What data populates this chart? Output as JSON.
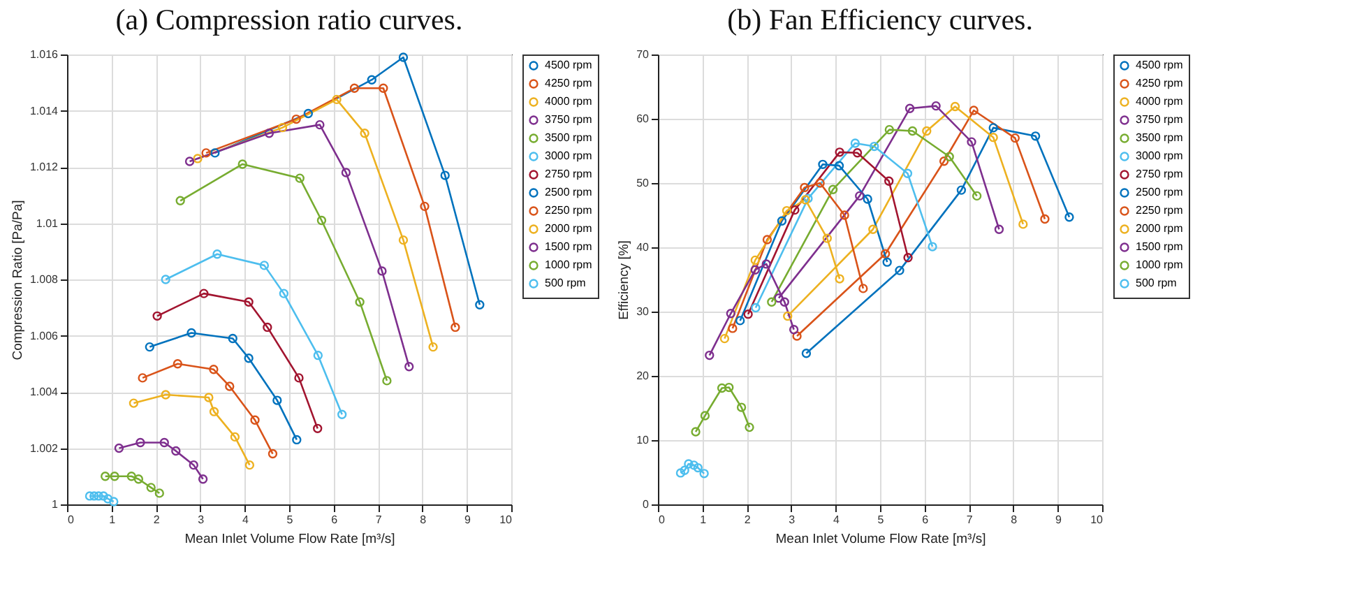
{
  "chart_data": [
    {
      "type": "line",
      "title": "(a) Compression ratio curves.",
      "xlabel": "Mean Inlet Volume Flow Rate [m³/s]",
      "ylabel": "Compression Ratio [Pa/Pa]",
      "xlim": [
        0,
        10
      ],
      "xticks": [
        0,
        1,
        2,
        3,
        4,
        5,
        6,
        7,
        8,
        9,
        10
      ],
      "ylim": [
        1,
        1.016
      ],
      "yticks": [
        1,
        1.002,
        1.004,
        1.006,
        1.008,
        1.01,
        1.012,
        1.014,
        1.016
      ],
      "grid": true,
      "legend": "right",
      "marker": "circle",
      "series": [
        {
          "name": "4500 rpm",
          "color": "#0072bd",
          "x": [
            3.33,
            5.43,
            6.86,
            7.57,
            8.51,
            9.29
          ],
          "values": [
            1.0125,
            1.0139,
            1.0151,
            1.0159,
            1.0117,
            1.0071
          ]
        },
        {
          "name": "4250 rpm",
          "color": "#d95319",
          "x": [
            3.13,
            5.16,
            6.47,
            7.12,
            8.05,
            8.74
          ],
          "values": [
            1.0125,
            1.0137,
            1.0148,
            1.0148,
            1.0106,
            1.0063
          ]
        },
        {
          "name": "4000 rpm",
          "color": "#edb120",
          "x": [
            2.94,
            4.85,
            6.07,
            6.7,
            7.57,
            8.24
          ],
          "values": [
            1.0123,
            1.0134,
            1.0144,
            1.0132,
            1.0094,
            1.0056
          ]
        },
        {
          "name": "3750 rpm",
          "color": "#7e2f8e",
          "x": [
            2.76,
            4.55,
            5.69,
            6.28,
            7.09,
            7.7
          ],
          "values": [
            1.0122,
            1.0132,
            1.0135,
            1.0118,
            1.0083,
            1.0049
          ]
        },
        {
          "name": "3500 rpm",
          "color": "#77ac30",
          "x": [
            2.55,
            3.95,
            5.24,
            5.73,
            6.59,
            7.2
          ],
          "values": [
            1.0108,
            1.0121,
            1.0116,
            1.0101,
            1.0072,
            1.0044
          ]
        },
        {
          "name": "3000 rpm",
          "color": "#4dbeee",
          "x": [
            2.22,
            3.38,
            4.44,
            4.88,
            5.65,
            6.19
          ],
          "values": [
            1.008,
            1.0089,
            1.0085,
            1.0075,
            1.0053,
            1.0032
          ]
        },
        {
          "name": "2750 rpm",
          "color": "#a2142f",
          "x": [
            2.03,
            3.08,
            4.09,
            4.51,
            5.22,
            5.64
          ],
          "values": [
            1.0067,
            1.0075,
            1.0072,
            1.0063,
            1.0045,
            1.0027
          ]
        },
        {
          "name": "2500 rpm",
          "color": "#0072bd",
          "x": [
            1.86,
            2.8,
            3.73,
            4.09,
            4.73,
            5.17
          ],
          "values": [
            1.0056,
            1.0061,
            1.0059,
            1.0052,
            1.0037,
            1.0023
          ]
        },
        {
          "name": "2250 rpm",
          "color": "#d95319",
          "x": [
            1.7,
            2.49,
            3.3,
            3.66,
            4.23,
            4.63
          ],
          "values": [
            1.0045,
            1.005,
            1.0048,
            1.0042,
            1.003,
            1.0018
          ]
        },
        {
          "name": "2000 rpm",
          "color": "#edb120",
          "x": [
            1.5,
            2.22,
            3.19,
            3.31,
            3.78,
            4.11
          ],
          "values": [
            1.0036,
            1.0039,
            1.0038,
            1.0033,
            1.0024,
            1.0014
          ]
        },
        {
          "name": "1500 rpm",
          "color": "#7e2f8e",
          "x": [
            1.17,
            1.65,
            2.19,
            2.45,
            2.85,
            3.06
          ],
          "values": [
            1.002,
            1.0022,
            1.0022,
            1.0019,
            1.0014,
            1.0009
          ]
        },
        {
          "name": "1000 rpm",
          "color": "#77ac30",
          "x": [
            0.86,
            1.07,
            1.45,
            1.61,
            1.89,
            2.08
          ],
          "values": [
            1.001,
            1.001,
            1.001,
            1.0009,
            1.0006,
            1.0004
          ]
        },
        {
          "name": "500 rpm",
          "color": "#4dbeee",
          "x": [
            0.51,
            0.61,
            0.71,
            0.82,
            0.92,
            1.05
          ],
          "values": [
            1.0003,
            1.0003,
            1.0003,
            1.0003,
            1.0002,
            1.0001
          ]
        }
      ]
    },
    {
      "type": "line",
      "title": "(b) Fan Efficiency curves.",
      "xlabel": "Mean Inlet Volume Flow Rate [m³/s]",
      "ylabel": "Efficiency [%]",
      "xlim": [
        0,
        10
      ],
      "xticks": [
        0,
        1,
        2,
        3,
        4,
        5,
        6,
        7,
        8,
        9,
        10
      ],
      "ylim": [
        0,
        70
      ],
      "yticks": [
        0,
        10,
        20,
        30,
        40,
        50,
        60,
        70
      ],
      "grid": true,
      "legend": "right",
      "marker": "circle",
      "series": [
        {
          "name": "4500 rpm",
          "color": "#0072bd",
          "x": [
            3.34,
            5.44,
            6.83,
            7.55,
            8.5,
            9.26
          ],
          "values": [
            23.5,
            36.4,
            48.9,
            58.6,
            57.3,
            44.7
          ]
        },
        {
          "name": "4250 rpm",
          "color": "#d95319",
          "x": [
            3.13,
            5.12,
            6.44,
            7.11,
            8.04,
            8.71
          ],
          "values": [
            26.2,
            39,
            53.4,
            61.3,
            57,
            44.4
          ]
        },
        {
          "name": "4000 rpm",
          "color": "#edb120",
          "x": [
            2.92,
            4.84,
            6.05,
            6.69,
            7.55,
            8.22
          ],
          "values": [
            29.3,
            42.8,
            58.1,
            61.9,
            57.1,
            43.6
          ]
        },
        {
          "name": "3750 rpm",
          "color": "#7e2f8e",
          "x": [
            2.72,
            4.54,
            5.67,
            6.26,
            7.06,
            7.68
          ],
          "values": [
            32.1,
            48,
            61.6,
            62,
            56.4,
            42.8
          ]
        },
        {
          "name": "3500 rpm",
          "color": "#77ac30",
          "x": [
            2.56,
            3.94,
            5.21,
            5.73,
            6.56,
            7.18
          ],
          "values": [
            31.5,
            49,
            58.3,
            58.1,
            54.1,
            48
          ]
        },
        {
          "name": "3000 rpm",
          "color": "#4dbeee",
          "x": [
            2.2,
            3.38,
            4.44,
            4.87,
            5.62,
            6.18
          ],
          "values": [
            30.6,
            47.6,
            56.2,
            55.7,
            51.5,
            40.1
          ]
        },
        {
          "name": "2750 rpm",
          "color": "#a2142f",
          "x": [
            2.03,
            3.08,
            4.09,
            4.49,
            5.2,
            5.63
          ],
          "values": [
            29.6,
            45.8,
            54.8,
            54.7,
            50.3,
            38.4
          ]
        },
        {
          "name": "2500 rpm",
          "color": "#0072bd",
          "x": [
            1.85,
            2.79,
            3.71,
            4.08,
            4.72,
            5.16
          ],
          "values": [
            28.6,
            44.1,
            52.9,
            52.7,
            47.5,
            37.7
          ]
        },
        {
          "name": "2250 rpm",
          "color": "#d95319",
          "x": [
            1.68,
            2.46,
            3.3,
            3.65,
            4.2,
            4.62
          ],
          "values": [
            27.4,
            41.2,
            49.3,
            50,
            45,
            33.6
          ]
        },
        {
          "name": "2000 rpm",
          "color": "#edb120",
          "x": [
            1.5,
            2.19,
            2.9,
            3.32,
            3.81,
            4.09
          ],
          "values": [
            25.8,
            38,
            45.7,
            47.4,
            41.4,
            35.1
          ]
        },
        {
          "name": "1500 rpm",
          "color": "#7e2f8e",
          "x": [
            1.16,
            1.64,
            2.19,
            2.44,
            2.85,
            3.06
          ],
          "values": [
            23.2,
            29.7,
            36.5,
            37.4,
            31.5,
            27.2
          ]
        },
        {
          "name": "1000 rpm",
          "color": "#77ac30",
          "x": [
            0.85,
            1.06,
            1.44,
            1.6,
            1.88,
            2.06
          ],
          "values": [
            11.3,
            13.8,
            18.1,
            18.2,
            15.1,
            12
          ]
        },
        {
          "name": "500 rpm",
          "color": "#4dbeee",
          "x": [
            0.51,
            0.6,
            0.69,
            0.81,
            0.9,
            1.04
          ],
          "values": [
            4.9,
            5.3,
            6.3,
            6.1,
            5.7,
            4.8
          ]
        }
      ]
    }
  ]
}
